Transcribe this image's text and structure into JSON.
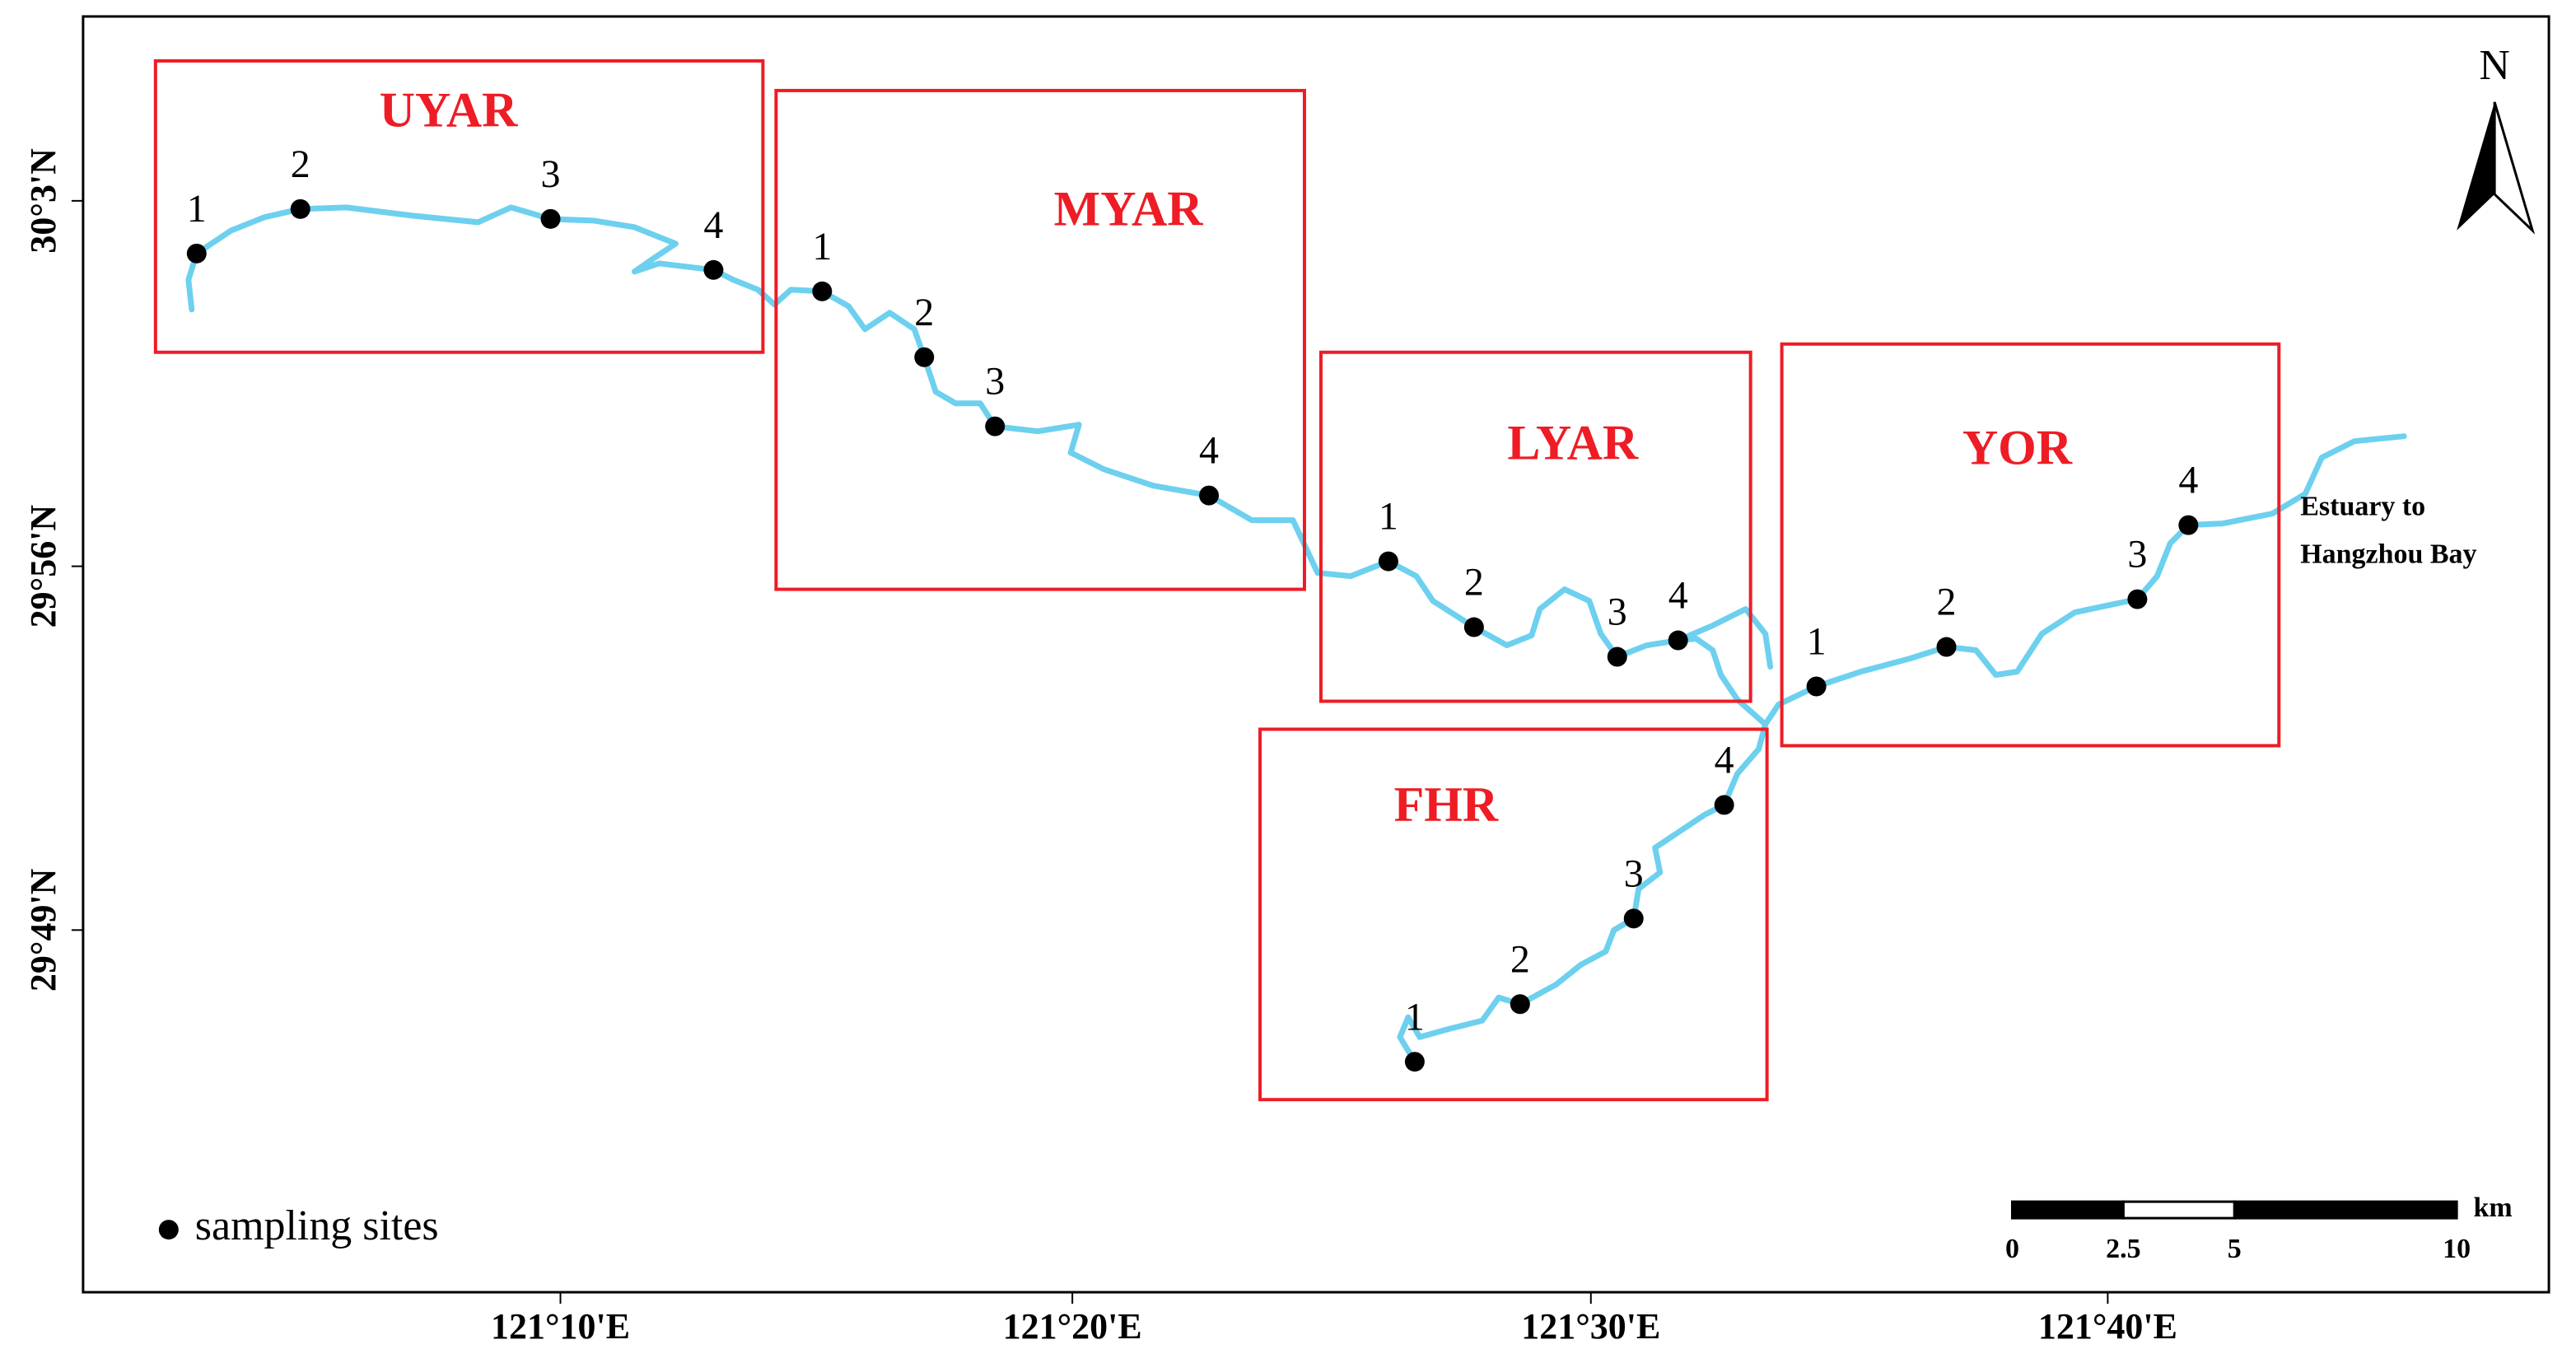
{
  "regions": [
    {
      "label": "UYAR",
      "sites": [
        "1",
        "2",
        "3",
        "4"
      ]
    },
    {
      "label": "MYAR",
      "sites": [
        "1",
        "2",
        "3",
        "4"
      ]
    },
    {
      "label": "LYAR",
      "sites": [
        "1",
        "2",
        "3",
        "4"
      ]
    },
    {
      "label": "FHR",
      "sites": [
        "1",
        "2",
        "3",
        "4"
      ]
    },
    {
      "label": "YOR",
      "sites": [
        "1",
        "2",
        "3",
        "4"
      ]
    }
  ],
  "north": "N",
  "legend": "sampling sites",
  "annotation": [
    "Estuary to",
    "Hangzhou Bay"
  ],
  "lat_labels": [
    "30°3'N",
    "29°56'N",
    "29°49'N"
  ],
  "lon_labels": [
    "121°10'E",
    "121°20'E",
    "121°30'E",
    "121°40'E"
  ],
  "scale": {
    "unit": "km",
    "ticks": [
      0,
      2.5,
      5,
      10
    ]
  }
}
